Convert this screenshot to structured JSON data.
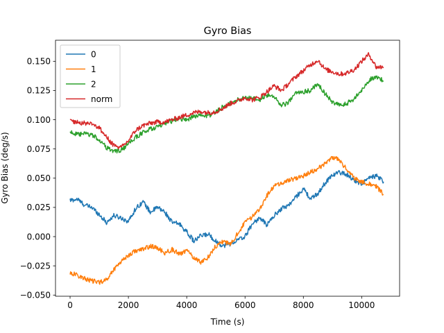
{
  "chart_data": {
    "type": "line",
    "title": "Gyro Bias",
    "xlabel": "Time (s)",
    "ylabel": "Gyro Bias (deg/s)",
    "xlim": [
      -500,
      11300
    ],
    "ylim": [
      -0.051,
      0.168
    ],
    "xticks": [
      0,
      2000,
      4000,
      6000,
      8000,
      10000
    ],
    "xtick_labels": [
      "0",
      "2000",
      "4000",
      "6000",
      "8000",
      "10000"
    ],
    "yticks": [
      -0.05,
      -0.025,
      0.0,
      0.025,
      0.05,
      0.075,
      0.1,
      0.125,
      0.15
    ],
    "ytick_labels": [
      "−0.050",
      "−0.025",
      "0.000",
      "0.025",
      "0.050",
      "0.075",
      "0.100",
      "0.125",
      "0.150"
    ],
    "grid": false,
    "legend_position": "top-left",
    "x": [
      0,
      250,
      500,
      750,
      1000,
      1250,
      1500,
      1750,
      2000,
      2250,
      2500,
      2750,
      3000,
      3250,
      3500,
      3750,
      4000,
      4250,
      4500,
      4750,
      5000,
      5250,
      5500,
      5750,
      6000,
      6250,
      6500,
      6750,
      7000,
      7250,
      7500,
      7750,
      8000,
      8250,
      8500,
      8750,
      9000,
      9250,
      9500,
      9750,
      10000,
      10250,
      10500,
      10750
    ],
    "series": [
      {
        "name": "0",
        "color": "#1f77b4",
        "values": [
          0.031,
          0.032,
          0.027,
          0.025,
          0.019,
          0.012,
          0.018,
          0.016,
          0.013,
          0.024,
          0.03,
          0.021,
          0.025,
          0.021,
          0.012,
          0.011,
          0.004,
          -0.004,
          0.001,
          0.002,
          -0.004,
          -0.008,
          -0.006,
          -0.003,
          0.0,
          0.011,
          0.016,
          0.01,
          0.018,
          0.024,
          0.027,
          0.034,
          0.041,
          0.032,
          0.037,
          0.046,
          0.053,
          0.055,
          0.053,
          0.048,
          0.045,
          0.05,
          0.052,
          0.047
        ]
      },
      {
        "name": "1",
        "color": "#ff7f0e",
        "values": [
          -0.031,
          -0.033,
          -0.036,
          -0.038,
          -0.039,
          -0.037,
          -0.028,
          -0.021,
          -0.016,
          -0.012,
          -0.011,
          -0.008,
          -0.01,
          -0.014,
          -0.011,
          -0.015,
          -0.012,
          -0.018,
          -0.022,
          -0.017,
          -0.008,
          -0.004,
          -0.007,
          0.003,
          0.012,
          0.017,
          0.024,
          0.035,
          0.043,
          0.046,
          0.048,
          0.05,
          0.052,
          0.055,
          0.058,
          0.063,
          0.068,
          0.065,
          0.057,
          0.05,
          0.047,
          0.045,
          0.043,
          0.036
        ]
      },
      {
        "name": "2",
        "color": "#2ca02c",
        "values": [
          0.09,
          0.087,
          0.088,
          0.087,
          0.083,
          0.076,
          0.073,
          0.074,
          0.079,
          0.085,
          0.089,
          0.092,
          0.094,
          0.096,
          0.099,
          0.101,
          0.1,
          0.103,
          0.104,
          0.103,
          0.107,
          0.111,
          0.114,
          0.117,
          0.119,
          0.118,
          0.117,
          0.121,
          0.12,
          0.112,
          0.115,
          0.123,
          0.124,
          0.125,
          0.131,
          0.122,
          0.115,
          0.112,
          0.114,
          0.118,
          0.125,
          0.134,
          0.137,
          0.133
        ]
      },
      {
        "name": "norm",
        "color": "#d62728",
        "values": [
          0.099,
          0.098,
          0.097,
          0.097,
          0.093,
          0.085,
          0.078,
          0.076,
          0.082,
          0.091,
          0.095,
          0.097,
          0.098,
          0.098,
          0.1,
          0.102,
          0.104,
          0.106,
          0.107,
          0.106,
          0.107,
          0.11,
          0.114,
          0.116,
          0.119,
          0.117,
          0.119,
          0.124,
          0.129,
          0.125,
          0.131,
          0.137,
          0.142,
          0.147,
          0.151,
          0.143,
          0.141,
          0.139,
          0.14,
          0.143,
          0.15,
          0.156,
          0.145,
          0.145
        ]
      }
    ]
  }
}
